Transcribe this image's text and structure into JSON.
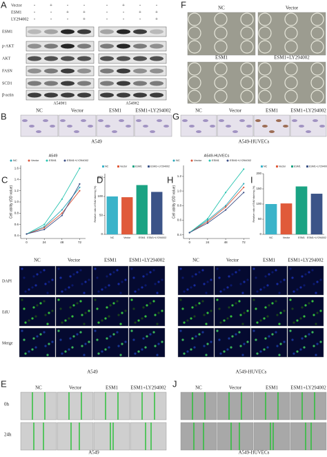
{
  "western": {
    "letter": "A",
    "treatments": [
      {
        "name": "Vector",
        "signs": [
          "-",
          "+",
          "-",
          "-",
          "-",
          "+",
          "-",
          "-"
        ]
      },
      {
        "name": "ESM1",
        "signs": [
          "-",
          "-",
          "+",
          "+",
          "-",
          "-",
          "+",
          "+"
        ]
      },
      {
        "name": "LY294002",
        "signs": [
          "-",
          "-",
          "-",
          "+",
          "-",
          "-",
          "-",
          "+"
        ]
      }
    ],
    "proteins": [
      "ESM1",
      "p-AKT",
      "AKT",
      "FASN",
      "SCD1",
      "β-actin"
    ],
    "blots": [
      "A549#1",
      "A549#2"
    ]
  },
  "tube": {
    "letter": "F",
    "groups": [
      "NC",
      "Vector",
      "ESM1",
      "ESM1+LY294002"
    ]
  },
  "morph": [
    {
      "letter": "B",
      "groups": [
        "NC",
        "Vector",
        "ESM1",
        "ESM1+LY294002"
      ],
      "cell": "A549"
    },
    {
      "letter": "G",
      "groups": [
        "NC",
        "Vector",
        "ESM1",
        "ESM1+LY294002"
      ],
      "cell": "A549-HUVECs"
    }
  ],
  "edu": [
    {
      "stains": [
        "DAPI",
        "EdU",
        "Merge"
      ],
      "groups": [
        "NC",
        "Vector",
        "ESM1",
        "ESM1+LY294002"
      ],
      "cell": "A549"
    },
    {
      "groups": [
        "NC",
        "Vector",
        "ESM1",
        "ESM1+LY294002"
      ],
      "cell": "A549-HUVECs"
    }
  ],
  "wound": [
    {
      "letter": "E",
      "times": [
        "0h",
        "24h"
      ],
      "groups": [
        "NC",
        "Vector",
        "ESM1",
        "ESM1+LY294002"
      ],
      "cell": "A549"
    },
    {
      "letter": "J",
      "groups": [
        "NC",
        "Vector",
        "ESM1",
        "ESM1+LY294002"
      ],
      "cell": "A549-HUVECs"
    }
  ],
  "chart_data": [
    {
      "type": "line",
      "letter": "C",
      "title": "A549",
      "ylabel": "Cell ability (OD value)",
      "x": [
        0,
        24,
        48,
        72
      ],
      "xlim": [
        -8,
        80
      ],
      "xticks": [
        0,
        24,
        48,
        72
      ],
      "ylim": [
        0.35,
        1.65
      ],
      "yticks": [
        0.4,
        0.6,
        0.8,
        {
          "value": 1.0,
          "label": "1.0"
        },
        1.2,
        1.4,
        1.6
      ],
      "series": [
        {
          "name": "NC",
          "color": "#2aa7b8",
          "values": [
            0.43,
            0.56,
            0.86,
            1.26
          ]
        },
        {
          "name": "Vector",
          "color": "#d9553a",
          "values": [
            0.43,
            0.54,
            0.8,
            1.2
          ]
        },
        {
          "name": "ESM1",
          "color": "#27c4b0",
          "values": [
            0.43,
            0.6,
            1.05,
            1.6
          ]
        },
        {
          "name": "ESM1+LY294002",
          "color": "#3c4f86",
          "values": [
            0.43,
            0.51,
            0.76,
            1.32
          ]
        }
      ]
    },
    {
      "type": "bar",
      "letter": "D",
      "ylabel": "Relative ratio of EdU staining (%)",
      "categories": [
        "NC",
        "Vector",
        "ESM1",
        "ESM1+LY294002"
      ],
      "values": [
        100,
        98,
        130,
        112
      ],
      "colors": [
        "#3ab3c9",
        "#e05a3a",
        "#1aa383",
        "#3c5488"
      ],
      "ylim": [
        0,
        160
      ],
      "yticks": [
        0,
        50,
        100,
        150
      ]
    },
    {
      "type": "line",
      "letter": "H",
      "title": "A549-HUVECs",
      "ylabel": "Cell ability (OD value)",
      "x": [
        0,
        24,
        48,
        72
      ],
      "xlim": [
        -8,
        80
      ],
      "xticks": [
        0,
        24,
        48,
        72
      ],
      "ylim": [
        0.35,
        1.35
      ],
      "yticks": [
        0.4,
        0.6,
        0.8,
        {
          "value": 1.0,
          "label": "1.0"
        },
        1.2
      ],
      "series": [
        {
          "name": "NC",
          "color": "#2aa7b8",
          "values": [
            0.43,
            0.6,
            0.8,
            1.1
          ]
        },
        {
          "name": "Vector",
          "color": "#d9553a",
          "values": [
            0.43,
            0.58,
            0.78,
            1.05
          ]
        },
        {
          "name": "ESM1",
          "color": "#27c4b0",
          "values": [
            0.43,
            0.62,
            0.98,
            1.3
          ]
        },
        {
          "name": "ESM1+LY294002",
          "color": "#3c4f86",
          "values": [
            0.43,
            0.56,
            0.74,
            0.98
          ]
        }
      ]
    },
    {
      "type": "bar",
      "letter": "I",
      "ylabel": "Relative ratio of EdU staining (%)",
      "categories": [
        "NC",
        "Vector",
        "ESM1",
        "ESM1+LY294002"
      ],
      "values": [
        100,
        102,
        158,
        134
      ],
      "colors": [
        "#3ab3c9",
        "#e05a3a",
        "#1aa383",
        "#3c5488"
      ],
      "ylim": [
        0,
        200
      ],
      "yticks": [
        0,
        50,
        100,
        150,
        200
      ]
    }
  ]
}
